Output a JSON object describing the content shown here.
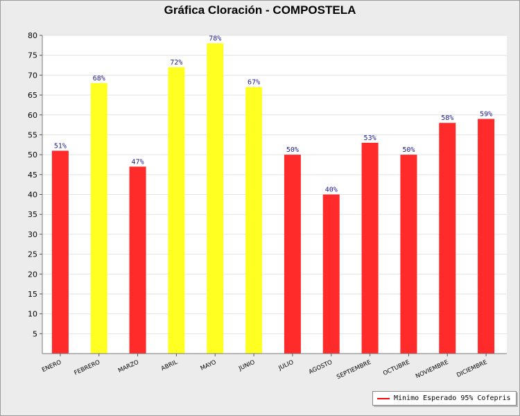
{
  "chart_data": {
    "type": "bar",
    "title": "Gráfica Cloración - COMPOSTELA",
    "xlabel": "",
    "ylabel": "",
    "ylim": [
      0,
      80
    ],
    "yticks": [
      5,
      10,
      15,
      20,
      25,
      30,
      35,
      40,
      45,
      50,
      55,
      60,
      65,
      70,
      75,
      80
    ],
    "categories": [
      "ENERO",
      "FEBRERO",
      "MARZO",
      "ABRIL",
      "MAYO",
      "JUNIO",
      "JULIO",
      "AGOSTO",
      "SEPTIEMBRE",
      "OCTUBRE",
      "NOVIEMBRE",
      "DICIEMBRE"
    ],
    "values": [
      51,
      68,
      47,
      72,
      78,
      67,
      50,
      40,
      53,
      50,
      58,
      59
    ],
    "value_labels": [
      "51%",
      "68%",
      "47%",
      "72%",
      "78%",
      "67%",
      "50%",
      "40%",
      "53%",
      "50%",
      "58%",
      "59%"
    ],
    "bar_colors": [
      "#ff2a2a",
      "#ffff22",
      "#ff2a2a",
      "#ffff22",
      "#ffff22",
      "#ffff22",
      "#ff2a2a",
      "#ff2a2a",
      "#ff2a2a",
      "#ff2a2a",
      "#ff2a2a",
      "#ff2a2a"
    ],
    "grid": true,
    "legend": {
      "position": "bottom-right",
      "entries": [
        {
          "label": "Minimo Esperado 95% Cofepris",
          "color": "#ff0000"
        }
      ]
    }
  }
}
